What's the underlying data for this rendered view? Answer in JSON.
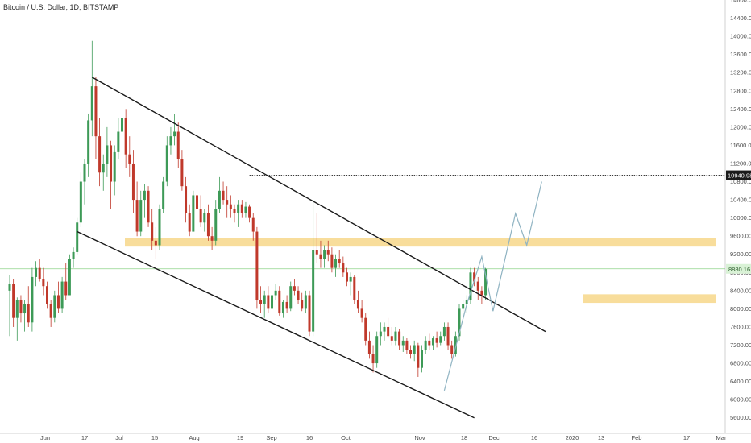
{
  "chart_data": {
    "type": "candlestick",
    "title": "Bitcoin / U.S. Dollar, 1D, BITSTAMP",
    "colors": {
      "up": "#3d9a57",
      "down": "#c0392b",
      "zone": "#f6d27a",
      "line": "#1a1a1a",
      "projection": "#8fb3c2",
      "price_line": "#8fd38a",
      "badge_current": "#d9f2d6",
      "badge_level": "#1a1a1a"
    },
    "ylim": [
      5400,
      14800
    ],
    "y_ticks": [
      5600,
      6000,
      6400,
      6800,
      7200,
      7600,
      8000,
      8400,
      8800,
      9200,
      9600,
      10000,
      10400,
      10800,
      11200,
      11600,
      12000,
      12400,
      12800,
      13200,
      13600,
      14000,
      14400,
      14800
    ],
    "x_tick_labels": [
      "Jun",
      "17",
      "Jul",
      "15",
      "Aug",
      "19",
      "Sep",
      "16",
      "Oct",
      "Nov",
      "18",
      "Dec",
      "16",
      "2020",
      "13",
      "Feb",
      "17",
      "Mar"
    ],
    "price_label_current": "8880.16",
    "price_label_level": "10940.98",
    "level_line_value": 10940.98,
    "current_value": 8880.16,
    "zones": [
      {
        "name": "upper-resistance-zone",
        "from": 9370,
        "to": 9560
      },
      {
        "name": "lower-support-zone",
        "from": 8130,
        "to": 8320
      }
    ],
    "ohlc": [
      {
        "o": 8400,
        "h": 8750,
        "l": 7400,
        "c": 8550
      },
      {
        "o": 8550,
        "h": 8650,
        "l": 7600,
        "c": 7800
      },
      {
        "o": 7800,
        "h": 8250,
        "l": 7300,
        "c": 8200
      },
      {
        "o": 8200,
        "h": 8300,
        "l": 7700,
        "c": 7900
      },
      {
        "o": 7900,
        "h": 8200,
        "l": 7500,
        "c": 8100
      },
      {
        "o": 8100,
        "h": 8500,
        "l": 7600,
        "c": 7700
      },
      {
        "o": 7700,
        "h": 8900,
        "l": 7500,
        "c": 8700
      },
      {
        "o": 8700,
        "h": 9050,
        "l": 8500,
        "c": 8900
      },
      {
        "o": 8900,
        "h": 9100,
        "l": 8600,
        "c": 8650
      },
      {
        "o": 8650,
        "h": 8900,
        "l": 8300,
        "c": 8500
      },
      {
        "o": 8500,
        "h": 8600,
        "l": 8000,
        "c": 8100
      },
      {
        "o": 8100,
        "h": 8200,
        "l": 7600,
        "c": 7800
      },
      {
        "o": 7800,
        "h": 8400,
        "l": 7700,
        "c": 8300
      },
      {
        "o": 8300,
        "h": 8600,
        "l": 7900,
        "c": 8000
      },
      {
        "o": 8000,
        "h": 8700,
        "l": 7900,
        "c": 8600
      },
      {
        "o": 8600,
        "h": 9000,
        "l": 8200,
        "c": 8300
      },
      {
        "o": 8300,
        "h": 9200,
        "l": 8300,
        "c": 9100
      },
      {
        "o": 9100,
        "h": 9350,
        "l": 8900,
        "c": 9250
      },
      {
        "o": 9250,
        "h": 10000,
        "l": 9200,
        "c": 9900
      },
      {
        "o": 9900,
        "h": 11000,
        "l": 9800,
        "c": 10800
      },
      {
        "o": 10800,
        "h": 11300,
        "l": 10300,
        "c": 11200
      },
      {
        "o": 11200,
        "h": 12300,
        "l": 10900,
        "c": 12150
      },
      {
        "o": 12150,
        "h": 13900,
        "l": 11800,
        "c": 12900
      },
      {
        "o": 12900,
        "h": 13100,
        "l": 11300,
        "c": 11800
      },
      {
        "o": 11800,
        "h": 12200,
        "l": 10700,
        "c": 11000
      },
      {
        "o": 11000,
        "h": 11400,
        "l": 10600,
        "c": 11200
      },
      {
        "o": 11200,
        "h": 12000,
        "l": 10900,
        "c": 11600
      },
      {
        "o": 11600,
        "h": 11700,
        "l": 10200,
        "c": 10800
      },
      {
        "o": 10800,
        "h": 11600,
        "l": 10500,
        "c": 11450
      },
      {
        "o": 11450,
        "h": 12200,
        "l": 11300,
        "c": 11900
      },
      {
        "o": 11900,
        "h": 13000,
        "l": 11600,
        "c": 12200
      },
      {
        "o": 12200,
        "h": 12400,
        "l": 11100,
        "c": 11400
      },
      {
        "o": 11400,
        "h": 11800,
        "l": 10900,
        "c": 11200
      },
      {
        "o": 11200,
        "h": 11500,
        "l": 10100,
        "c": 10400
      },
      {
        "o": 10400,
        "h": 10800,
        "l": 9600,
        "c": 9700
      },
      {
        "o": 9700,
        "h": 10600,
        "l": 9600,
        "c": 10400
      },
      {
        "o": 10400,
        "h": 10750,
        "l": 10000,
        "c": 10600
      },
      {
        "o": 10600,
        "h": 10700,
        "l": 9800,
        "c": 9900
      },
      {
        "o": 9900,
        "h": 10200,
        "l": 9300,
        "c": 9500
      },
      {
        "o": 9500,
        "h": 9800,
        "l": 9100,
        "c": 9400
      },
      {
        "o": 9400,
        "h": 10300,
        "l": 9300,
        "c": 10200
      },
      {
        "o": 10200,
        "h": 10900,
        "l": 10100,
        "c": 10800
      },
      {
        "o": 10800,
        "h": 11800,
        "l": 10700,
        "c": 11600
      },
      {
        "o": 11600,
        "h": 12000,
        "l": 11400,
        "c": 11800
      },
      {
        "o": 11800,
        "h": 12300,
        "l": 11600,
        "c": 11900
      },
      {
        "o": 11900,
        "h": 12100,
        "l": 11100,
        "c": 11300
      },
      {
        "o": 11300,
        "h": 11500,
        "l": 10600,
        "c": 10700
      },
      {
        "o": 10700,
        "h": 10900,
        "l": 9900,
        "c": 10100
      },
      {
        "o": 10100,
        "h": 10300,
        "l": 9600,
        "c": 9700
      },
      {
        "o": 9700,
        "h": 10600,
        "l": 9700,
        "c": 10500
      },
      {
        "o": 10500,
        "h": 10950,
        "l": 10100,
        "c": 10200
      },
      {
        "o": 10200,
        "h": 10500,
        "l": 9800,
        "c": 9900
      },
      {
        "o": 9900,
        "h": 10200,
        "l": 9700,
        "c": 10100
      },
      {
        "o": 10100,
        "h": 10300,
        "l": 9500,
        "c": 9600
      },
      {
        "o": 9600,
        "h": 9800,
        "l": 9300,
        "c": 9500
      },
      {
        "o": 9500,
        "h": 10400,
        "l": 9400,
        "c": 10200
      },
      {
        "o": 10200,
        "h": 10900,
        "l": 10100,
        "c": 10600
      },
      {
        "o": 10600,
        "h": 10800,
        "l": 10300,
        "c": 10400
      },
      {
        "o": 10400,
        "h": 10700,
        "l": 10000,
        "c": 10300
      },
      {
        "o": 10300,
        "h": 10500,
        "l": 10000,
        "c": 10200
      },
      {
        "o": 10200,
        "h": 10300,
        "l": 9900,
        "c": 10100
      },
      {
        "o": 10100,
        "h": 10400,
        "l": 9800,
        "c": 10300
      },
      {
        "o": 10300,
        "h": 10400,
        "l": 10000,
        "c": 10100
      },
      {
        "o": 10100,
        "h": 10350,
        "l": 10000,
        "c": 10250
      },
      {
        "o": 10250,
        "h": 10300,
        "l": 9900,
        "c": 10000
      },
      {
        "o": 10000,
        "h": 10100,
        "l": 9500,
        "c": 9700
      },
      {
        "o": 9700,
        "h": 9800,
        "l": 8000,
        "c": 8200
      },
      {
        "o": 8200,
        "h": 8500,
        "l": 7900,
        "c": 8100
      },
      {
        "o": 8100,
        "h": 8400,
        "l": 7800,
        "c": 8300
      },
      {
        "o": 8300,
        "h": 8500,
        "l": 7900,
        "c": 8000
      },
      {
        "o": 8000,
        "h": 8400,
        "l": 7900,
        "c": 8300
      },
      {
        "o": 8300,
        "h": 8550,
        "l": 8200,
        "c": 8400
      },
      {
        "o": 8400,
        "h": 8500,
        "l": 7850,
        "c": 7900
      },
      {
        "o": 7900,
        "h": 8200,
        "l": 7800,
        "c": 8150
      },
      {
        "o": 8150,
        "h": 8300,
        "l": 7900,
        "c": 8000
      },
      {
        "o": 8000,
        "h": 8600,
        "l": 7950,
        "c": 8500
      },
      {
        "o": 8500,
        "h": 8650,
        "l": 8300,
        "c": 8400
      },
      {
        "o": 8400,
        "h": 8500,
        "l": 8100,
        "c": 8200
      },
      {
        "o": 8200,
        "h": 8350,
        "l": 7950,
        "c": 8000
      },
      {
        "o": 8000,
        "h": 8400,
        "l": 7900,
        "c": 8300
      },
      {
        "o": 8300,
        "h": 8400,
        "l": 7400,
        "c": 7500
      },
      {
        "o": 7500,
        "h": 10400,
        "l": 7400,
        "c": 9300
      },
      {
        "o": 9300,
        "h": 10100,
        "l": 9000,
        "c": 9200
      },
      {
        "o": 9200,
        "h": 9500,
        "l": 8900,
        "c": 9100
      },
      {
        "o": 9100,
        "h": 9400,
        "l": 8900,
        "c": 9300
      },
      {
        "o": 9300,
        "h": 9500,
        "l": 9050,
        "c": 9200
      },
      {
        "o": 9200,
        "h": 9350,
        "l": 8800,
        "c": 8900
      },
      {
        "o": 8900,
        "h": 9200,
        "l": 8700,
        "c": 9100
      },
      {
        "o": 9100,
        "h": 9300,
        "l": 8900,
        "c": 9000
      },
      {
        "o": 9000,
        "h": 9150,
        "l": 8700,
        "c": 8800
      },
      {
        "o": 8800,
        "h": 8900,
        "l": 8500,
        "c": 8600
      },
      {
        "o": 8600,
        "h": 8800,
        "l": 8300,
        "c": 8700
      },
      {
        "o": 8700,
        "h": 8750,
        "l": 8100,
        "c": 8200
      },
      {
        "o": 8200,
        "h": 8400,
        "l": 7900,
        "c": 8000
      },
      {
        "o": 8000,
        "h": 8200,
        "l": 7700,
        "c": 7800
      },
      {
        "o": 7800,
        "h": 7900,
        "l": 7200,
        "c": 7300
      },
      {
        "o": 7300,
        "h": 7500,
        "l": 6900,
        "c": 7000
      },
      {
        "o": 7000,
        "h": 7200,
        "l": 6600,
        "c": 6800
      },
      {
        "o": 6800,
        "h": 7500,
        "l": 6700,
        "c": 7400
      },
      {
        "o": 7400,
        "h": 7700,
        "l": 7200,
        "c": 7500
      },
      {
        "o": 7500,
        "h": 7700,
        "l": 7300,
        "c": 7600
      },
      {
        "o": 7600,
        "h": 7800,
        "l": 7350,
        "c": 7400
      },
      {
        "o": 7400,
        "h": 7600,
        "l": 7200,
        "c": 7300
      },
      {
        "o": 7300,
        "h": 7600,
        "l": 7200,
        "c": 7500
      },
      {
        "o": 7500,
        "h": 7550,
        "l": 7100,
        "c": 7200
      },
      {
        "o": 7200,
        "h": 7400,
        "l": 7050,
        "c": 7300
      },
      {
        "o": 7300,
        "h": 7350,
        "l": 7000,
        "c": 7100
      },
      {
        "o": 7100,
        "h": 7200,
        "l": 6900,
        "c": 7000
      },
      {
        "o": 7000,
        "h": 7300,
        "l": 6850,
        "c": 7200
      },
      {
        "o": 7200,
        "h": 7250,
        "l": 6500,
        "c": 6700
      },
      {
        "o": 6700,
        "h": 7200,
        "l": 6600,
        "c": 7100
      },
      {
        "o": 7100,
        "h": 7400,
        "l": 7000,
        "c": 7300
      },
      {
        "o": 7300,
        "h": 7450,
        "l": 7100,
        "c": 7200
      },
      {
        "o": 7200,
        "h": 7400,
        "l": 7100,
        "c": 7350
      },
      {
        "o": 7350,
        "h": 7500,
        "l": 7150,
        "c": 7250
      },
      {
        "o": 7250,
        "h": 7500,
        "l": 7200,
        "c": 7400
      },
      {
        "o": 7400,
        "h": 7700,
        "l": 7300,
        "c": 7600
      },
      {
        "o": 7600,
        "h": 7700,
        "l": 7100,
        "c": 7200
      },
      {
        "o": 7200,
        "h": 7300,
        "l": 6900,
        "c": 7000
      },
      {
        "o": 7000,
        "h": 7500,
        "l": 6950,
        "c": 7400
      },
      {
        "o": 7400,
        "h": 8100,
        "l": 7300,
        "c": 8000
      },
      {
        "o": 8000,
        "h": 8200,
        "l": 7800,
        "c": 8100
      },
      {
        "o": 8100,
        "h": 8300,
        "l": 7900,
        "c": 8200
      },
      {
        "o": 8200,
        "h": 8900,
        "l": 8100,
        "c": 8800
      },
      {
        "o": 8800,
        "h": 8900,
        "l": 8500,
        "c": 8600
      },
      {
        "o": 8600,
        "h": 8700,
        "l": 8200,
        "c": 8400
      },
      {
        "o": 8400,
        "h": 8500,
        "l": 8100,
        "c": 8300
      },
      {
        "o": 8300,
        "h": 8900,
        "l": 8200,
        "c": 8880
      }
    ],
    "trendlines": [
      {
        "name": "channel-upper-line",
        "from": {
          "i": 22,
          "v": 13100
        },
        "to": {
          "i": 143,
          "v": 7500
        }
      },
      {
        "name": "channel-lower-line",
        "from": {
          "i": 18,
          "v": 9700
        },
        "to": {
          "i": 124,
          "v": 5600
        }
      }
    ],
    "projection_path": [
      {
        "i": 116,
        "v": 6200
      },
      {
        "i": 122,
        "v": 8100
      },
      {
        "i": 126,
        "v": 9150
      },
      {
        "i": 129,
        "v": 7950
      },
      {
        "i": 135,
        "v": 10100
      },
      {
        "i": 138,
        "v": 9400
      },
      {
        "i": 142,
        "v": 10800
      }
    ]
  }
}
